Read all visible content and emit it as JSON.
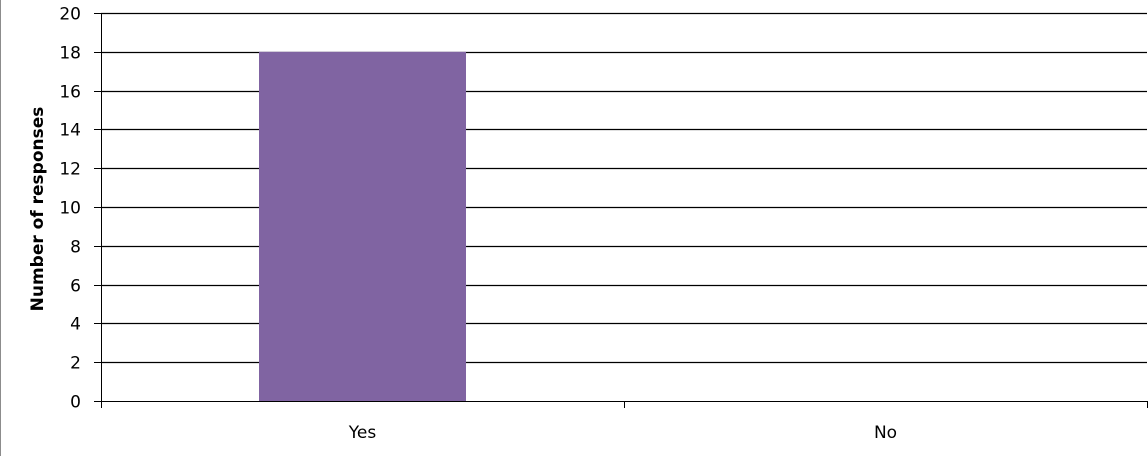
{
  "chart_data": {
    "type": "bar",
    "title": "",
    "xlabel": "",
    "ylabel": "Number of responses",
    "categories": [
      "Yes",
      "No"
    ],
    "values": [
      18,
      0
    ],
    "ylim": [
      0,
      20
    ],
    "yticks": [
      0,
      2,
      4,
      6,
      8,
      10,
      12,
      14,
      16,
      18,
      20
    ],
    "grid": true,
    "legend": "none",
    "colors": {
      "bar": "#8064a2",
      "grid": "#000000",
      "text": "#000000"
    }
  }
}
